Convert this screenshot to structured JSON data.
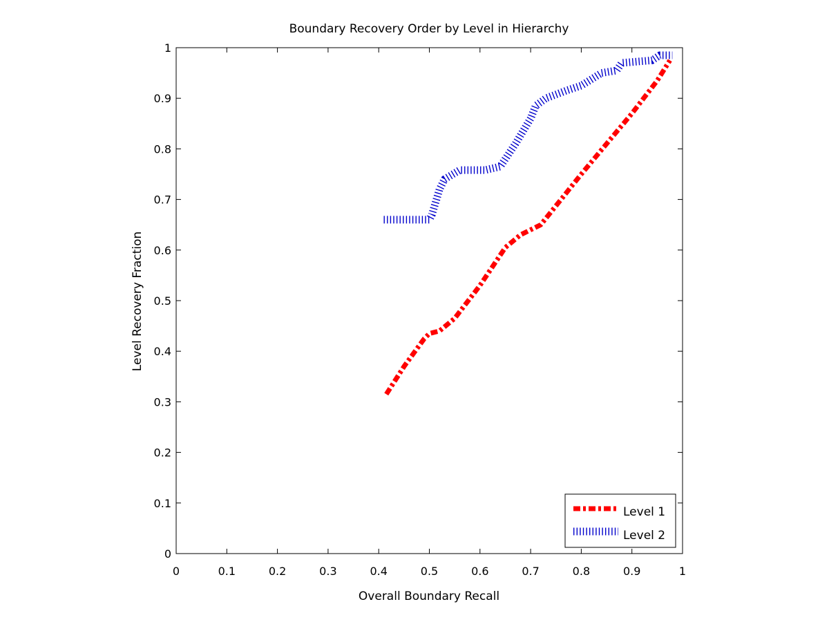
{
  "chart_data": {
    "type": "line",
    "title": "Boundary Recovery Order by Level in Hierarchy",
    "xlabel": "Overall Boundary Recall",
    "ylabel": "Level Recovery Fraction",
    "xlim": [
      0,
      1
    ],
    "ylim": [
      0,
      1
    ],
    "xticks": [
      "0",
      "0.1",
      "0.2",
      "0.3",
      "0.4",
      "0.5",
      "0.6",
      "0.7",
      "0.8",
      "0.9",
      "1"
    ],
    "yticks": [
      "0",
      "0.1",
      "0.2",
      "0.3",
      "0.4",
      "0.5",
      "0.6",
      "0.7",
      "0.8",
      "0.9",
      "1"
    ],
    "grid": false,
    "legend_position": "bottom-right",
    "series": [
      {
        "name": "Level 1",
        "color": "#ff0000",
        "line_style": "dash-dot",
        "x": [
          0.415,
          0.45,
          0.49,
          0.5,
          0.52,
          0.55,
          0.6,
          0.65,
          0.68,
          0.7,
          0.72,
          0.76,
          0.8,
          0.85,
          0.9,
          0.95,
          0.975
        ],
        "y": [
          0.315,
          0.37,
          0.425,
          0.435,
          0.44,
          0.465,
          0.53,
          0.605,
          0.63,
          0.64,
          0.65,
          0.7,
          0.75,
          0.81,
          0.87,
          0.935,
          0.975
        ]
      },
      {
        "name": "Level 2",
        "color": "#0000cc",
        "line_style": "dotted",
        "x": [
          0.41,
          0.5,
          0.505,
          0.52,
          0.53,
          0.56,
          0.61,
          0.64,
          0.67,
          0.7,
          0.71,
          0.73,
          0.77,
          0.8,
          0.84,
          0.87,
          0.88,
          0.94,
          0.955,
          0.98
        ],
        "y": [
          0.66,
          0.66,
          0.67,
          0.72,
          0.74,
          0.758,
          0.758,
          0.765,
          0.81,
          0.86,
          0.885,
          0.9,
          0.915,
          0.925,
          0.95,
          0.955,
          0.97,
          0.975,
          0.985,
          0.985
        ]
      }
    ]
  }
}
